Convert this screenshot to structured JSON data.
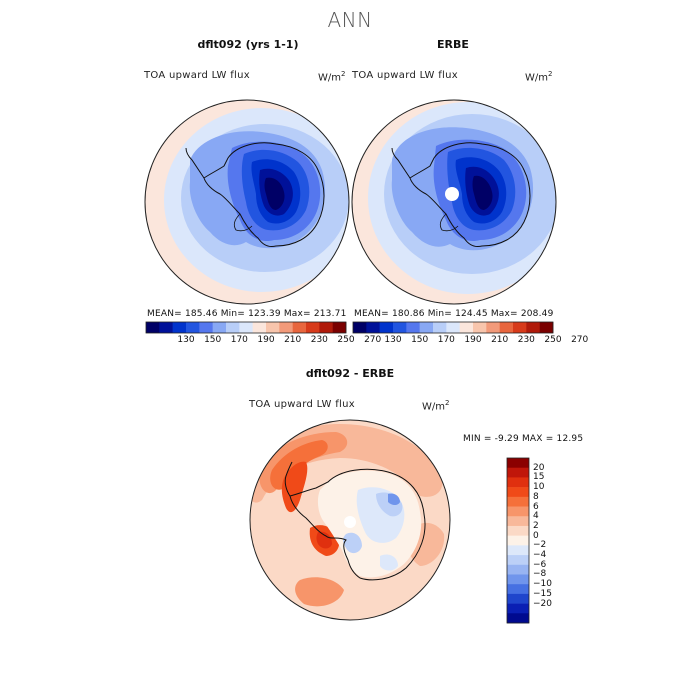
{
  "figure": {
    "main_title": "ANN"
  },
  "chart_data": [
    {
      "type": "heatmap",
      "projection": "south-polar-stereographic",
      "title": "dflt092 (yrs 1-1)",
      "variable": "TOA upward LW flux",
      "units": "W/m",
      "units_exponent": "2",
      "stats": {
        "mean": "185.46",
        "min": "123.39",
        "max": "213.71"
      },
      "stats_text": "MEAN= 185.46   Min= 123.39   Max= 213.71",
      "colorbar": {
        "orientation": "horizontal",
        "ticks": [
          "130",
          "150",
          "170",
          "190",
          "210",
          "230",
          "250",
          "270"
        ],
        "colors": [
          "#000066",
          "#001199",
          "#0033cc",
          "#2255e0",
          "#5577ee",
          "#88a8f4",
          "#b8cef8",
          "#dbe7fb",
          "#fbe6dc",
          "#f8c5ac",
          "#f29a7a",
          "#e8663e",
          "#d73a1a",
          "#b01a0a",
          "#7a0000"
        ]
      },
      "masked_pole": false
    },
    {
      "type": "heatmap",
      "projection": "south-polar-stereographic",
      "title": "ERBE",
      "variable": "TOA upward LW flux",
      "units": "W/m",
      "units_exponent": "2",
      "stats": {
        "mean": "180.86",
        "min": "124.45",
        "max": "208.49"
      },
      "stats_text": "MEAN= 180.86   Min= 124.45   Max= 208.49",
      "colorbar": {
        "orientation": "horizontal",
        "ticks": [
          "130",
          "150",
          "170",
          "190",
          "210",
          "230",
          "250",
          "270"
        ],
        "colors": [
          "#000066",
          "#001199",
          "#0033cc",
          "#2255e0",
          "#5577ee",
          "#88a8f4",
          "#b8cef8",
          "#dbe7fb",
          "#fbe6dc",
          "#f8c5ac",
          "#f29a7a",
          "#e8663e",
          "#d73a1a",
          "#b01a0a",
          "#7a0000"
        ]
      },
      "masked_pole": true
    },
    {
      "type": "heatmap",
      "projection": "south-polar-stereographic",
      "title": "dflt092 - ERBE",
      "variable": "TOA upward LW flux",
      "units": "W/m",
      "units_exponent": "2",
      "stats": {
        "min": "-9.29",
        "max": "12.95"
      },
      "stats_text": "MIN =  -9.29 MAX =  12.95",
      "colorbar": {
        "orientation": "vertical",
        "ticks": [
          "20",
          "15",
          "10",
          "8",
          "6",
          "4",
          "2",
          "0",
          "−2",
          "−4",
          "−6",
          "−8",
          "−10",
          "−15",
          "−20"
        ],
        "colors": [
          "#8b0000",
          "#c0160a",
          "#e0300f",
          "#f04a18",
          "#f5703a",
          "#f7956a",
          "#f8b89a",
          "#fbd9c6",
          "#fdf2e8",
          "#dde8fa",
          "#bcd0f7",
          "#98b4f2",
          "#7095ec",
          "#4670e2",
          "#1f45cc",
          "#0a1fb4",
          "#000a8f"
        ]
      },
      "masked_pole": true
    }
  ]
}
